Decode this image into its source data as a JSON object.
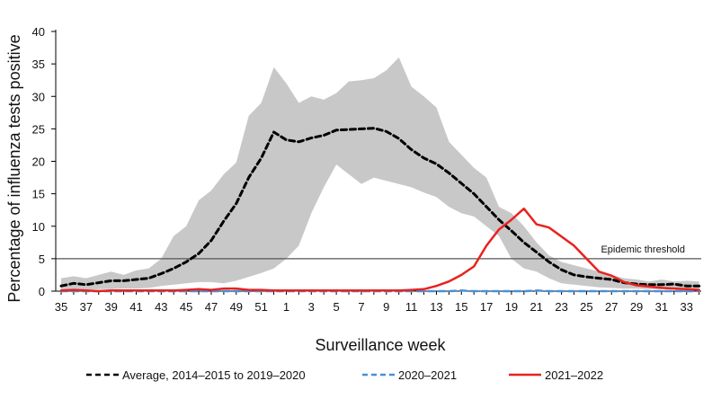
{
  "chart_data": {
    "type": "line",
    "title": "",
    "xlabel": "Surveillance week",
    "ylabel": "Percentage of influenza  tests positive",
    "ylim": [
      0,
      40
    ],
    "yticks": [
      0,
      5,
      10,
      15,
      20,
      25,
      30,
      35,
      40
    ],
    "grid": false,
    "legend_position": "bottom",
    "x_tick_labels": [
      "35",
      "37",
      "39",
      "41",
      "43",
      "45",
      "47",
      "49",
      "51",
      "1",
      "3",
      "5",
      "7",
      "9",
      "11",
      "13",
      "15",
      "17",
      "19",
      "21",
      "23",
      "25",
      "27",
      "29",
      "31",
      "33"
    ],
    "weeks": [
      "35",
      "36",
      "37",
      "38",
      "39",
      "40",
      "41",
      "42",
      "43",
      "44",
      "45",
      "46",
      "47",
      "48",
      "49",
      "50",
      "51",
      "52",
      "1",
      "2",
      "3",
      "4",
      "5",
      "6",
      "7",
      "8",
      "9",
      "10",
      "11",
      "12",
      "13",
      "14",
      "15",
      "16",
      "17",
      "18",
      "19",
      "20",
      "21",
      "22",
      "23",
      "24",
      "25",
      "26",
      "27",
      "28",
      "29",
      "30",
      "31",
      "32",
      "33",
      "34"
    ],
    "threshold": {
      "value": 5,
      "label": "Epidemic threshold"
    },
    "range_band": {
      "lower": [
        0.2,
        0.2,
        0.2,
        0.3,
        0.3,
        0.4,
        0.4,
        0.5,
        0.8,
        1.0,
        1.2,
        1.4,
        1.4,
        1.2,
        1.6,
        2.2,
        2.8,
        3.5,
        5.0,
        7.0,
        12.0,
        16.0,
        19.5,
        18.0,
        16.5,
        17.5,
        17.0,
        16.5,
        16.0,
        15.2,
        14.5,
        13.0,
        12.0,
        11.5,
        10.0,
        8.5,
        5.0,
        3.5,
        3.0,
        2.0,
        1.2,
        1.0,
        0.8,
        0.6,
        0.5,
        0.4,
        0.4,
        0.3,
        0.3,
        0.3,
        0.3,
        0.3
      ],
      "upper": [
        2.0,
        2.3,
        2.0,
        2.5,
        3.0,
        2.5,
        3.2,
        3.5,
        5.0,
        8.5,
        10.0,
        14.0,
        15.5,
        18.0,
        19.8,
        27.0,
        29.0,
        34.5,
        32.0,
        29.0,
        30.0,
        29.5,
        30.5,
        32.3,
        32.5,
        32.8,
        34.0,
        36.0,
        31.5,
        30.0,
        28.3,
        23.0,
        21.0,
        19.0,
        17.5,
        13.0,
        12.0,
        10.0,
        7.5,
        5.5,
        4.5,
        4.0,
        3.5,
        3.0,
        2.5,
        2.0,
        1.8,
        1.5,
        1.8,
        1.5,
        1.6,
        1.5
      ]
    },
    "series": [
      {
        "name": "Average, 2014–2015 to 2019–2020",
        "color": "#000000",
        "style": "dashed",
        "values": [
          0.8,
          1.2,
          1.0,
          1.3,
          1.6,
          1.6,
          1.8,
          2.0,
          2.7,
          3.5,
          4.5,
          5.8,
          7.8,
          10.8,
          13.5,
          17.5,
          20.5,
          24.5,
          23.3,
          23.0,
          23.6,
          24.0,
          24.8,
          24.9,
          25.0,
          25.1,
          24.6,
          23.5,
          21.8,
          20.5,
          19.6,
          18.2,
          16.6,
          15.0,
          13.0,
          11.0,
          9.3,
          7.5,
          6.0,
          4.5,
          3.3,
          2.5,
          2.2,
          2.0,
          1.8,
          1.3,
          1.1,
          1.0,
          1.0,
          1.1,
          0.8,
          0.8
        ]
      },
      {
        "name": "2020–2021",
        "color": "#4a90d9",
        "style": "dashed",
        "values": [
          0,
          0,
          0,
          0,
          0,
          0,
          0,
          0,
          0,
          0,
          0,
          0,
          0,
          0,
          0,
          0,
          0,
          0,
          0,
          0,
          0,
          0,
          0,
          0,
          0,
          0,
          0,
          0,
          0,
          0,
          0,
          0,
          0.1,
          0,
          0,
          0,
          0,
          0,
          0.1,
          0,
          0,
          0,
          0,
          0,
          0,
          0,
          0,
          0,
          0,
          0,
          0,
          0
        ]
      },
      {
        "name": "2021–2022",
        "color": "#e8221e",
        "style": "solid",
        "values": [
          0.1,
          0.2,
          0.1,
          0,
          0.1,
          0.1,
          0.1,
          0.1,
          0.1,
          0.1,
          0.2,
          0.3,
          0.2,
          0.4,
          0.4,
          0.2,
          0.2,
          0.1,
          0.1,
          0.1,
          0.1,
          0.1,
          0.1,
          0.1,
          0.1,
          0.1,
          0.1,
          0.1,
          0.2,
          0.3,
          0.8,
          1.5,
          2.5,
          3.8,
          7.0,
          9.5,
          11.0,
          12.7,
          10.3,
          9.8,
          8.4,
          7.0,
          5.0,
          3.0,
          2.4,
          1.4,
          0.9,
          0.7,
          0.5,
          0.4,
          0.3,
          0.2
        ]
      }
    ]
  }
}
